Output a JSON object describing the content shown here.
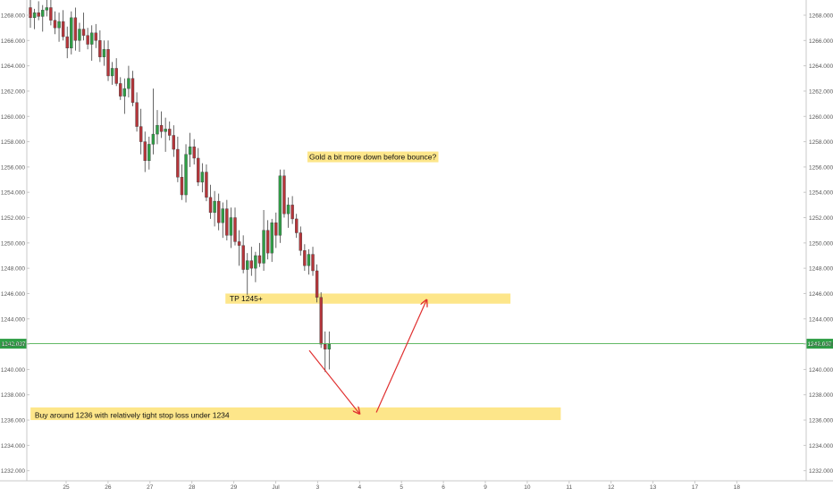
{
  "colors": {
    "up": "#2e9e45",
    "down": "#b5353a",
    "wick": "#404040",
    "current_line": "#4caf50",
    "current_badge": "#2e9e45",
    "zone_fill": "#fde68a",
    "arrow": "#e03030",
    "axis_text": "#555555",
    "border": "#c8c8c8",
    "grid": "#f2f2f2"
  },
  "chart_data": {
    "type": "candlestick",
    "title": "",
    "xlabel": "",
    "ylabel": "",
    "ylim": [
      1231.2,
      1269.2
    ],
    "y_ticks": [
      "1232.000",
      "1234.000",
      "1236.000",
      "1238.000",
      "1240.000",
      "1242.000",
      "1244.000",
      "1246.000",
      "1248.000",
      "1250.000",
      "1252.000",
      "1254.000",
      "1256.000",
      "1258.000",
      "1260.000",
      "1262.000",
      "1264.000",
      "1266.000",
      "1268.000"
    ],
    "x_ticks": [
      "25",
      "26",
      "27",
      "28",
      "29",
      "Jul",
      "3",
      "4",
      "5",
      "6",
      "9",
      "10",
      "11",
      "12",
      "13",
      "17",
      "18"
    ],
    "current_price": "1242.037",
    "candles": [
      {
        "o": 1268.6,
        "h": 1269.2,
        "l": 1267.0,
        "c": 1267.8
      },
      {
        "o": 1267.8,
        "h": 1268.5,
        "l": 1266.9,
        "c": 1268.2
      },
      {
        "o": 1268.2,
        "h": 1269.1,
        "l": 1267.6,
        "c": 1267.9
      },
      {
        "o": 1267.9,
        "h": 1268.8,
        "l": 1266.7,
        "c": 1268.4
      },
      {
        "o": 1268.4,
        "h": 1269.2,
        "l": 1267.9,
        "c": 1268.6
      },
      {
        "o": 1268.6,
        "h": 1269.2,
        "l": 1267.2,
        "c": 1267.6
      },
      {
        "o": 1267.6,
        "h": 1268.3,
        "l": 1266.5,
        "c": 1267.0
      },
      {
        "o": 1267.0,
        "h": 1268.2,
        "l": 1265.9,
        "c": 1267.5
      },
      {
        "o": 1267.5,
        "h": 1268.4,
        "l": 1266.0,
        "c": 1266.3
      },
      {
        "o": 1266.3,
        "h": 1267.1,
        "l": 1264.6,
        "c": 1265.4
      },
      {
        "o": 1265.4,
        "h": 1268.3,
        "l": 1264.9,
        "c": 1267.8
      },
      {
        "o": 1267.8,
        "h": 1268.6,
        "l": 1265.2,
        "c": 1266.0
      },
      {
        "o": 1266.0,
        "h": 1267.4,
        "l": 1265.1,
        "c": 1266.9
      },
      {
        "o": 1266.9,
        "h": 1268.2,
        "l": 1266.0,
        "c": 1266.4
      },
      {
        "o": 1266.4,
        "h": 1267.0,
        "l": 1265.3,
        "c": 1265.7
      },
      {
        "o": 1265.7,
        "h": 1267.2,
        "l": 1264.4,
        "c": 1266.6
      },
      {
        "o": 1266.6,
        "h": 1267.3,
        "l": 1265.4,
        "c": 1266.0
      },
      {
        "o": 1266.0,
        "h": 1266.8,
        "l": 1264.3,
        "c": 1264.7
      },
      {
        "o": 1264.7,
        "h": 1266.0,
        "l": 1264.0,
        "c": 1265.3
      },
      {
        "o": 1265.3,
        "h": 1266.0,
        "l": 1262.8,
        "c": 1263.2
      },
      {
        "o": 1263.2,
        "h": 1264.3,
        "l": 1262.5,
        "c": 1263.8
      },
      {
        "o": 1263.8,
        "h": 1264.6,
        "l": 1262.4,
        "c": 1262.6
      },
      {
        "o": 1262.6,
        "h": 1263.1,
        "l": 1261.3,
        "c": 1261.6
      },
      {
        "o": 1261.6,
        "h": 1263.0,
        "l": 1260.2,
        "c": 1262.2
      },
      {
        "o": 1262.2,
        "h": 1264.0,
        "l": 1261.5,
        "c": 1263.0
      },
      {
        "o": 1263.0,
        "h": 1263.6,
        "l": 1260.8,
        "c": 1261.1
      },
      {
        "o": 1261.1,
        "h": 1261.9,
        "l": 1258.8,
        "c": 1259.2
      },
      {
        "o": 1259.2,
        "h": 1260.6,
        "l": 1257.0,
        "c": 1258.0
      },
      {
        "o": 1258.0,
        "h": 1258.8,
        "l": 1255.6,
        "c": 1256.5
      },
      {
        "o": 1256.5,
        "h": 1258.4,
        "l": 1255.8,
        "c": 1257.8
      },
      {
        "o": 1257.8,
        "h": 1262.2,
        "l": 1257.0,
        "c": 1258.6
      },
      {
        "o": 1258.6,
        "h": 1260.5,
        "l": 1257.8,
        "c": 1259.3
      },
      {
        "o": 1259.3,
        "h": 1260.4,
        "l": 1258.3,
        "c": 1258.8
      },
      {
        "o": 1258.8,
        "h": 1259.9,
        "l": 1257.2,
        "c": 1259.0
      },
      {
        "o": 1259.0,
        "h": 1259.6,
        "l": 1258.1,
        "c": 1258.5
      },
      {
        "o": 1258.5,
        "h": 1259.3,
        "l": 1256.8,
        "c": 1257.4
      },
      {
        "o": 1257.4,
        "h": 1258.4,
        "l": 1254.8,
        "c": 1255.2
      },
      {
        "o": 1255.2,
        "h": 1256.2,
        "l": 1253.4,
        "c": 1253.8
      },
      {
        "o": 1253.8,
        "h": 1257.8,
        "l": 1253.2,
        "c": 1257.0
      },
      {
        "o": 1257.0,
        "h": 1258.7,
        "l": 1256.0,
        "c": 1257.6
      },
      {
        "o": 1257.6,
        "h": 1258.2,
        "l": 1256.2,
        "c": 1256.7
      },
      {
        "o": 1256.7,
        "h": 1257.5,
        "l": 1254.5,
        "c": 1254.8
      },
      {
        "o": 1254.8,
        "h": 1256.3,
        "l": 1254.0,
        "c": 1255.6
      },
      {
        "o": 1255.6,
        "h": 1256.2,
        "l": 1253.3,
        "c": 1253.6
      },
      {
        "o": 1253.6,
        "h": 1254.6,
        "l": 1251.9,
        "c": 1252.4
      },
      {
        "o": 1252.4,
        "h": 1254.1,
        "l": 1251.3,
        "c": 1253.3
      },
      {
        "o": 1253.3,
        "h": 1253.9,
        "l": 1251.0,
        "c": 1251.6
      },
      {
        "o": 1251.6,
        "h": 1253.2,
        "l": 1250.4,
        "c": 1252.7
      },
      {
        "o": 1252.7,
        "h": 1253.4,
        "l": 1250.2,
        "c": 1250.6
      },
      {
        "o": 1250.6,
        "h": 1252.8,
        "l": 1249.6,
        "c": 1252.0
      },
      {
        "o": 1252.0,
        "h": 1252.8,
        "l": 1249.8,
        "c": 1250.1
      },
      {
        "o": 1250.1,
        "h": 1251.0,
        "l": 1248.2,
        "c": 1249.8
      },
      {
        "o": 1249.8,
        "h": 1250.6,
        "l": 1247.6,
        "c": 1247.9
      },
      {
        "o": 1247.9,
        "h": 1249.2,
        "l": 1245.9,
        "c": 1248.6
      },
      {
        "o": 1248.6,
        "h": 1249.7,
        "l": 1247.4,
        "c": 1248.0
      },
      {
        "o": 1248.0,
        "h": 1249.3,
        "l": 1246.9,
        "c": 1249.0
      },
      {
        "o": 1249.0,
        "h": 1250.0,
        "l": 1248.1,
        "c": 1248.4
      },
      {
        "o": 1248.4,
        "h": 1252.6,
        "l": 1247.8,
        "c": 1251.0
      },
      {
        "o": 1251.0,
        "h": 1251.8,
        "l": 1248.7,
        "c": 1249.2
      },
      {
        "o": 1249.2,
        "h": 1251.9,
        "l": 1248.5,
        "c": 1251.6
      },
      {
        "o": 1251.6,
        "h": 1252.4,
        "l": 1249.6,
        "c": 1250.6
      },
      {
        "o": 1250.6,
        "h": 1255.8,
        "l": 1250.0,
        "c": 1255.3
      },
      {
        "o": 1255.3,
        "h": 1255.8,
        "l": 1252.0,
        "c": 1252.3
      },
      {
        "o": 1252.3,
        "h": 1253.6,
        "l": 1251.2,
        "c": 1253.0
      },
      {
        "o": 1253.0,
        "h": 1253.7,
        "l": 1251.5,
        "c": 1251.9
      },
      {
        "o": 1251.9,
        "h": 1252.3,
        "l": 1250.4,
        "c": 1250.8
      },
      {
        "o": 1250.8,
        "h": 1251.3,
        "l": 1249.0,
        "c": 1249.4
      },
      {
        "o": 1249.4,
        "h": 1249.9,
        "l": 1247.8,
        "c": 1248.2
      },
      {
        "o": 1248.2,
        "h": 1249.5,
        "l": 1247.5,
        "c": 1249.1
      },
      {
        "o": 1249.1,
        "h": 1249.7,
        "l": 1247.4,
        "c": 1247.8
      },
      {
        "o": 1247.8,
        "h": 1248.3,
        "l": 1245.3,
        "c": 1245.7
      },
      {
        "o": 1245.7,
        "h": 1246.1,
        "l": 1241.7,
        "c": 1242.0
      },
      {
        "o": 1242.0,
        "h": 1243.0,
        "l": 1239.8,
        "c": 1241.6
      },
      {
        "o": 1241.6,
        "h": 1243.0,
        "l": 1240.0,
        "c": 1242.0
      }
    ],
    "annotations": [
      {
        "text": "Gold a bit more down before bounce?",
        "x": 5.8,
        "y": 1256.8
      },
      {
        "text": "TP 1245+",
        "x": 3.9,
        "y": 1245.6,
        "zone": [
          1245.2,
          1246.0
        ],
        "zone_x": [
          3.8,
          10.6
        ]
      },
      {
        "text": "Buy around 1236 with relatively tight stop loss under 1234",
        "x": -0.75,
        "y": 1236.4,
        "zone": [
          1236.0,
          1237.0
        ],
        "zone_x": [
          -0.85,
          11.8
        ]
      }
    ],
    "arrows": [
      {
        "from": [
          5.8,
          1241.5
        ],
        "to": [
          7.0,
          1236.5
        ]
      },
      {
        "from": [
          7.4,
          1236.6
        ],
        "to": [
          8.6,
          1245.5
        ]
      }
    ]
  }
}
